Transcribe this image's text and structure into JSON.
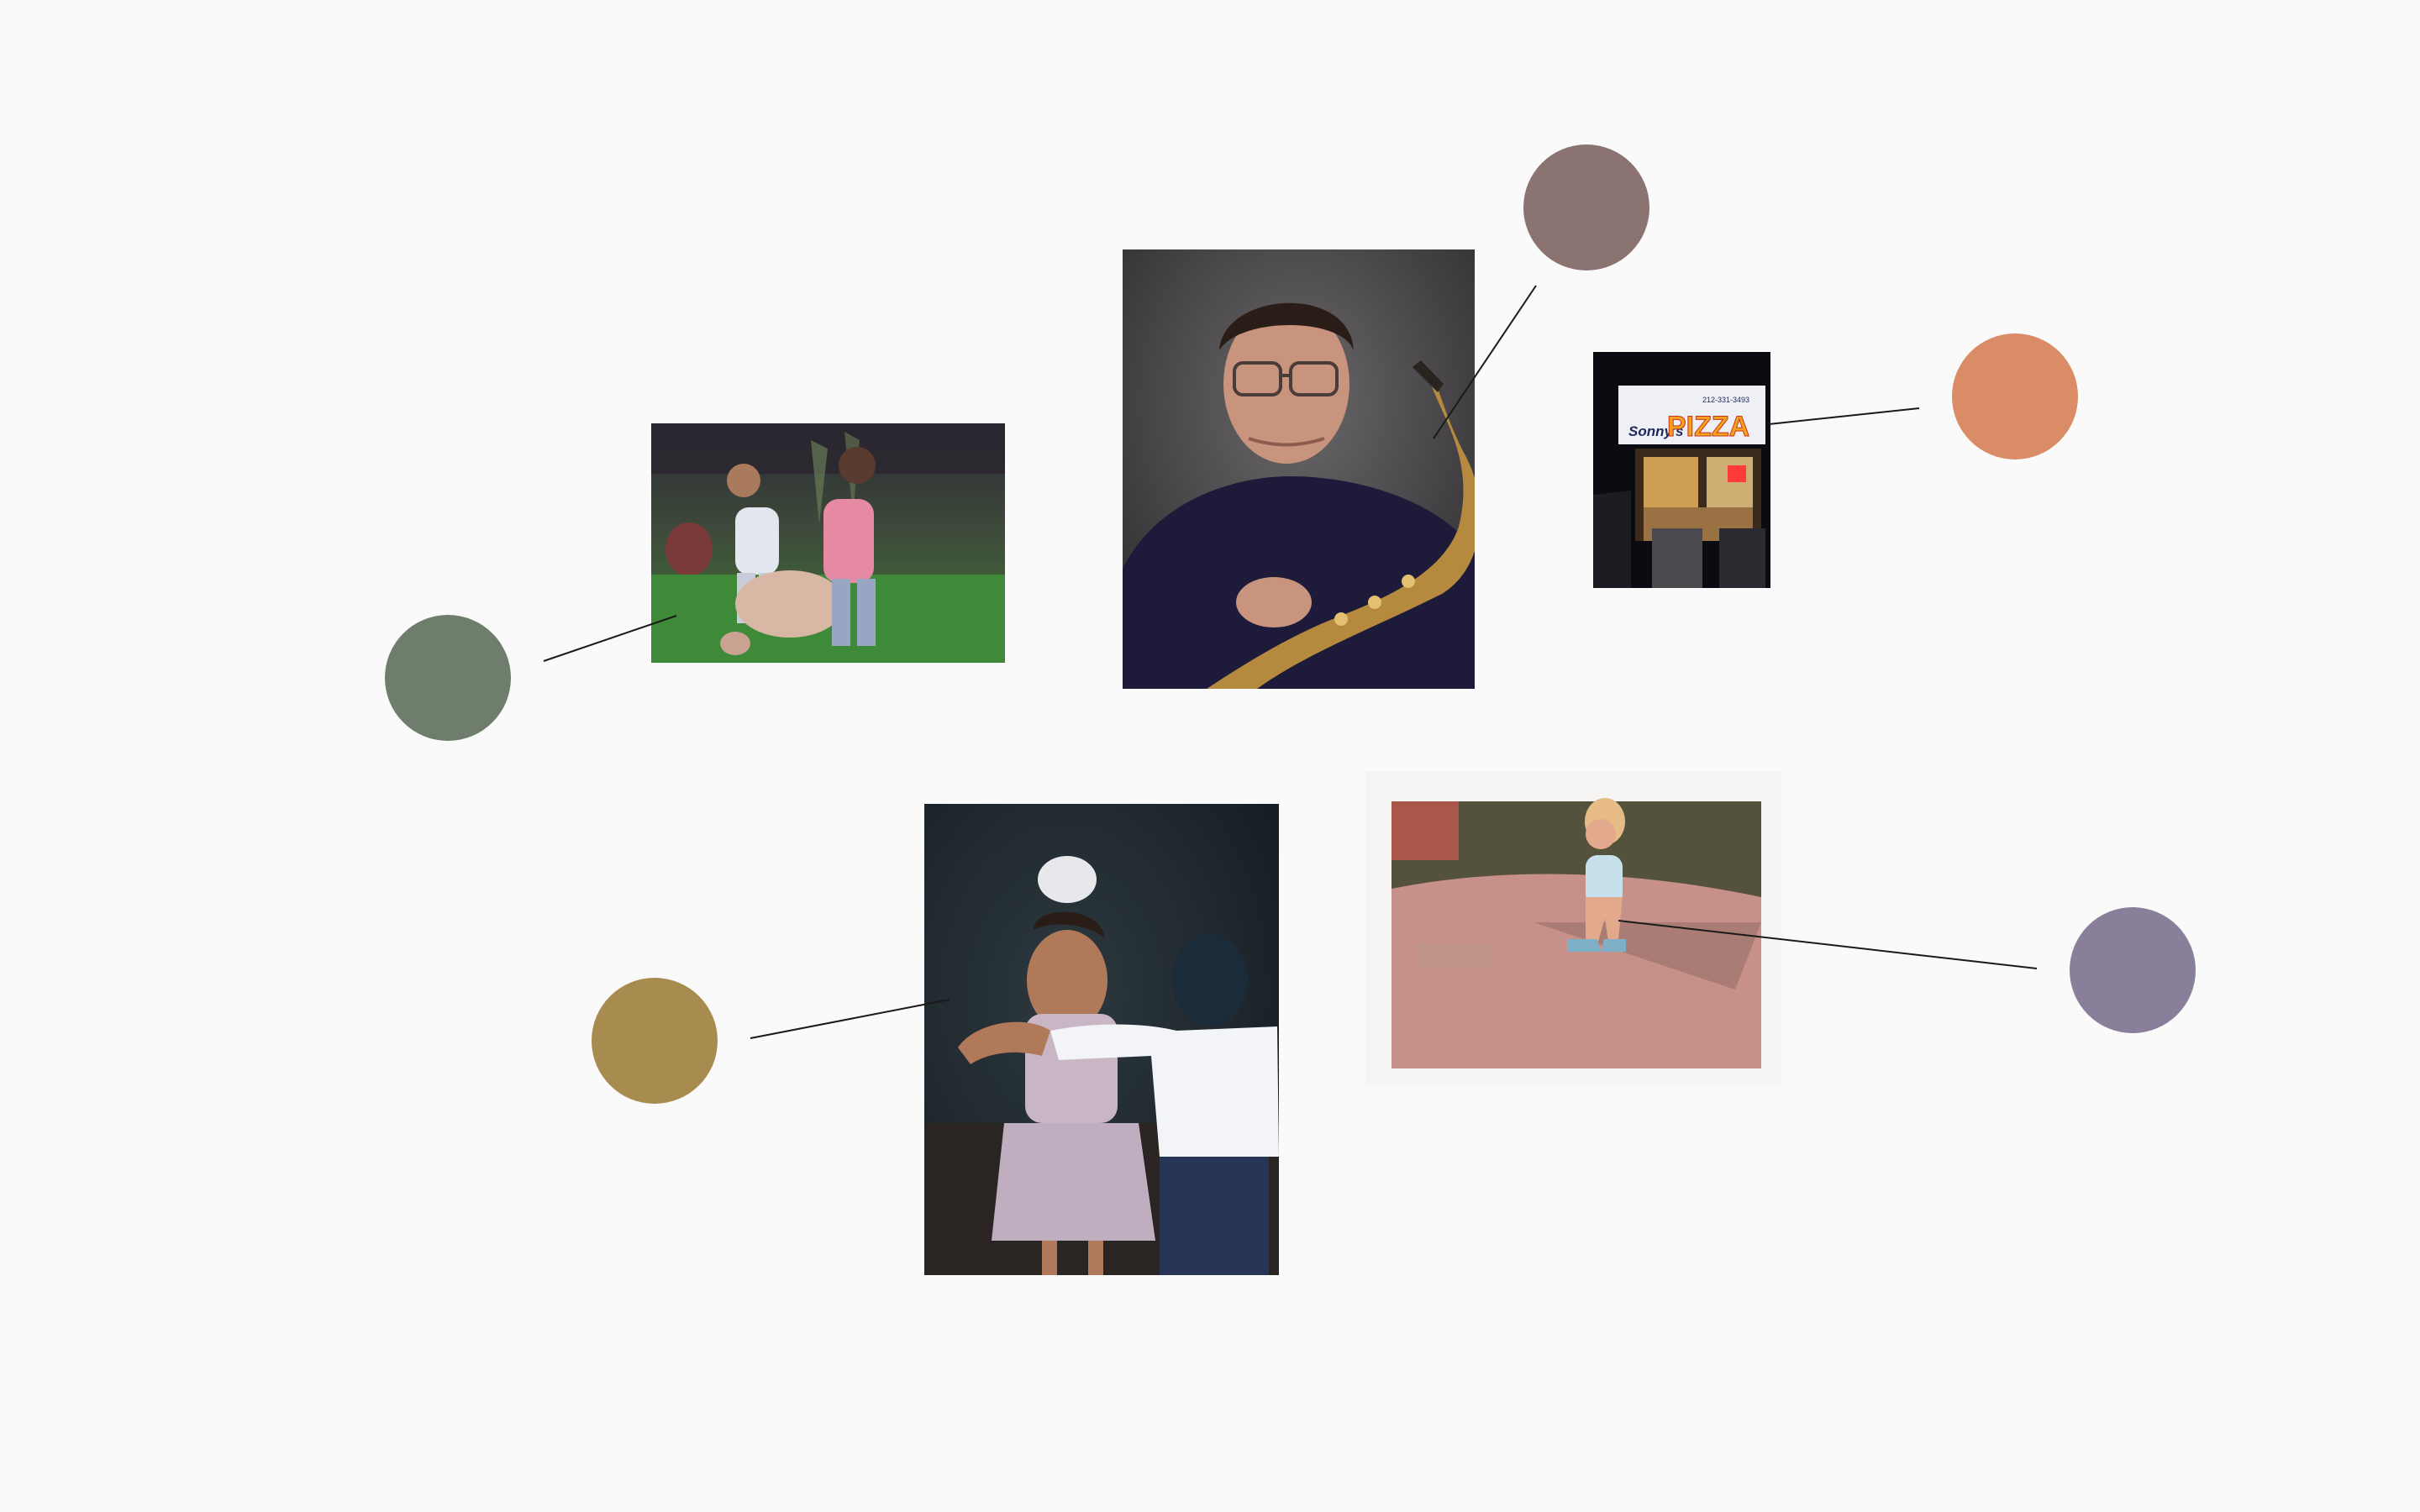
{
  "photos": [
    {
      "id": "kids-with-sheep",
      "dominant_color": "#6f7d6c"
    },
    {
      "id": "saxophone-portrait",
      "dominant_color": "#8a7370"
    },
    {
      "id": "pizza-storefront",
      "dominant_color": "#d98c65",
      "sign_text": "PIZZA",
      "sign_script": "Sonny's",
      "sign_phone": "212-331-3493"
    },
    {
      "id": "girl-dancing-with-boy",
      "dominant_color": "#a88c4f"
    },
    {
      "id": "toddler-dancing-street",
      "dominant_color": "#8a7f9b"
    }
  ],
  "swatches": [
    {
      "name": "color-swatch-green",
      "color": "#6f7d6c"
    },
    {
      "name": "color-swatch-mauve",
      "color": "#8a7370"
    },
    {
      "name": "color-swatch-orange",
      "color": "#d98c65"
    },
    {
      "name": "color-swatch-ochre",
      "color": "#a88c4f"
    },
    {
      "name": "color-swatch-lavender",
      "color": "#8a7f9b"
    }
  ]
}
